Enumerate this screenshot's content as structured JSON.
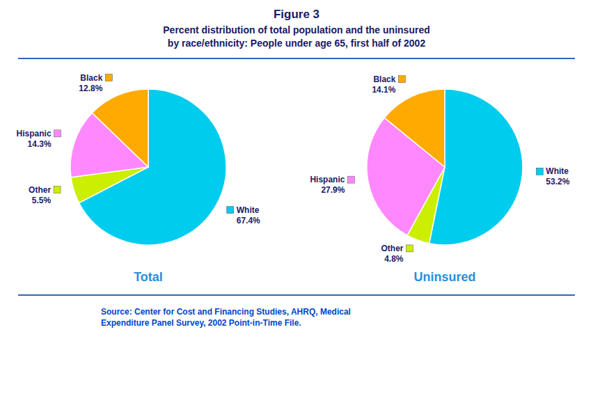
{
  "title": "Figure 3",
  "subtitle": "Percent distribution of total population and the uninsured\nby race/ethnicity: People under age 65, first half of 2002",
  "annotations": [
    "Source: Center for Cost and Financing Studies, AHRQ, Medical\nExpenditure Panel Survey, 2002 Point-in-Time File."
  ],
  "chart_data": [
    {
      "type": "pie",
      "title": "Total",
      "categories": [
        "White",
        "Other",
        "Hispanic",
        "Black"
      ],
      "values": [
        67.4,
        5.5,
        14.3,
        12.8
      ],
      "value_labels": [
        "67.4%",
        "5.5%",
        "14.3%",
        "12.8%"
      ],
      "colors": [
        "#00CCEE",
        "#CCEE00",
        "#FF88FF",
        "#FFAA00"
      ],
      "data_labels": true
    },
    {
      "type": "pie",
      "title": "Uninsured",
      "categories": [
        "White",
        "Other",
        "Hispanic",
        "Black"
      ],
      "values": [
        53.2,
        4.8,
        27.9,
        14.1
      ],
      "value_labels": [
        "53.2%",
        "4.8%",
        "27.9%",
        "14.1%"
      ],
      "colors": [
        "#00CCEE",
        "#CCEE00",
        "#FF88FF",
        "#FFAA00"
      ],
      "data_labels": true
    }
  ]
}
